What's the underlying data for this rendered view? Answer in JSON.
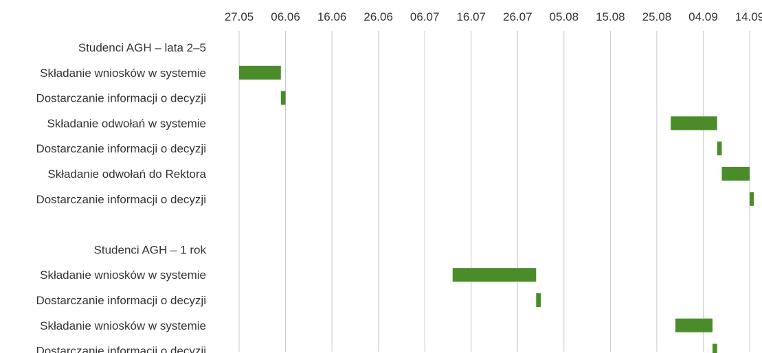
{
  "chart_data": {
    "type": "bar",
    "subtype": "gantt",
    "title": "",
    "xlabel": "",
    "ylabel": "",
    "x_axis_position": "top",
    "x_ticks": [
      "27.05",
      "06.06",
      "16.06",
      "26.06",
      "06.07",
      "16.07",
      "26.07",
      "05.08",
      "15.08",
      "25.08",
      "04.09",
      "14.09"
    ],
    "x_range": [
      "27.05",
      "14.09"
    ],
    "grid": true,
    "bar_color": "#4a8c2a",
    "rows": [
      {
        "label": "Studenci AGH – lata 2–5",
        "start": null,
        "end": null
      },
      {
        "label": "Składanie wniosków w systemie",
        "start": "27.05",
        "end": "05.06"
      },
      {
        "label": "Dostarczanie informacji o decyzji",
        "start": "05.06",
        "end": "06.06"
      },
      {
        "label": "Składanie odwołań w systemie",
        "start": "28.08",
        "end": "07.09"
      },
      {
        "label": "Dostarczanie informacji o decyzji",
        "start": "07.09",
        "end": "08.09"
      },
      {
        "label": "Składanie odwołań do Rektora",
        "start": "08.09",
        "end": "14.09"
      },
      {
        "label": "Dostarczanie informacji o decyzji",
        "start": "14.09",
        "end": "15.09"
      },
      {
        "label": "",
        "start": null,
        "end": null
      },
      {
        "label": "Studenci AGH – 1 rok",
        "start": null,
        "end": null
      },
      {
        "label": "Składanie wniosków w systemie",
        "start": "12.07",
        "end": "30.07"
      },
      {
        "label": "Dostarczanie informacji o decyzji",
        "start": "30.07",
        "end": "31.07"
      },
      {
        "label": "Składanie wniosków w systemie",
        "start": "29.08",
        "end": "06.09"
      },
      {
        "label": "Dostarczanie informacji o decyzji",
        "start": "06.09",
        "end": "07.09"
      }
    ]
  }
}
